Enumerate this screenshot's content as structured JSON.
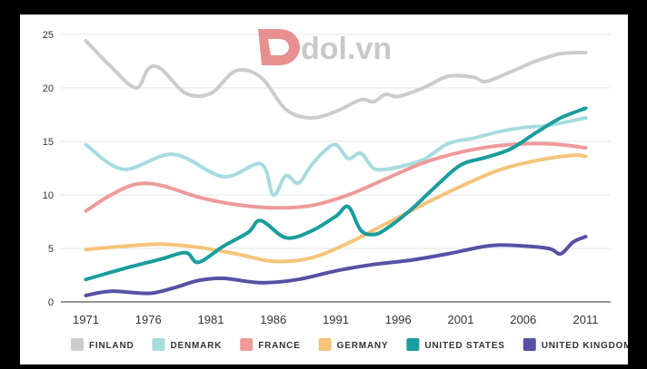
{
  "watermark": {
    "text": "dol.vn",
    "logo_color": "#e88f8f"
  },
  "chart_data": {
    "type": "line",
    "title": "",
    "xlabel": "",
    "ylabel": "",
    "ylim": [
      0,
      25
    ],
    "yticks": [
      "0",
      "5",
      "10",
      "15",
      "20",
      "25"
    ],
    "xticks": [
      "1971",
      "1976",
      "1981",
      "1986",
      "1991",
      "1996",
      "2001",
      "2006",
      "2011"
    ],
    "grid": "horizontal",
    "legend_position": "bottom",
    "series": [
      {
        "name": "FINLAND",
        "color": "#cccccc",
        "points": [
          [
            1971,
            24.4
          ],
          [
            1973,
            22.0
          ],
          [
            1975,
            20.0
          ],
          [
            1976,
            21.8
          ],
          [
            1977,
            21.8
          ],
          [
            1979,
            19.5
          ],
          [
            1981,
            19.5
          ],
          [
            1983,
            21.6
          ],
          [
            1985,
            21.0
          ],
          [
            1987,
            18.0
          ],
          [
            1989,
            17.2
          ],
          [
            1991,
            17.8
          ],
          [
            1993,
            18.9
          ],
          [
            1994,
            18.7
          ],
          [
            1995,
            19.4
          ],
          [
            1996,
            19.2
          ],
          [
            1998,
            20.0
          ],
          [
            2000,
            21.1
          ],
          [
            2002,
            21.0
          ],
          [
            2003,
            20.6
          ],
          [
            2005,
            21.5
          ],
          [
            2007,
            22.5
          ],
          [
            2009,
            23.2
          ],
          [
            2011,
            23.3
          ]
        ]
      },
      {
        "name": "DENMARK",
        "color": "#a7dcdf",
        "points": [
          [
            1971,
            14.7
          ],
          [
            1974,
            12.4
          ],
          [
            1978,
            13.8
          ],
          [
            1982,
            11.7
          ],
          [
            1985,
            12.9
          ],
          [
            1986,
            10.0
          ],
          [
            1987,
            11.8
          ],
          [
            1988,
            11.1
          ],
          [
            1989,
            12.7
          ],
          [
            1990,
            14.0
          ],
          [
            1991,
            14.7
          ],
          [
            1992,
            13.4
          ],
          [
            1993,
            13.9
          ],
          [
            1994,
            12.5
          ],
          [
            1995,
            12.4
          ],
          [
            1996,
            12.6
          ],
          [
            1998,
            13.3
          ],
          [
            2000,
            14.8
          ],
          [
            2002,
            15.3
          ],
          [
            2004,
            15.9
          ],
          [
            2006,
            16.3
          ],
          [
            2008,
            16.5
          ],
          [
            2011,
            17.2
          ]
        ]
      },
      {
        "name": "FRANCE",
        "color": "#ee9a9a",
        "points": [
          [
            1971,
            8.5
          ],
          [
            1973,
            10.0
          ],
          [
            1975,
            11.0
          ],
          [
            1977,
            10.9
          ],
          [
            1980,
            9.8
          ],
          [
            1983,
            9.1
          ],
          [
            1986,
            8.8
          ],
          [
            1989,
            9.0
          ],
          [
            1992,
            10.0
          ],
          [
            1995,
            11.5
          ],
          [
            1998,
            13.0
          ],
          [
            2001,
            14.0
          ],
          [
            2004,
            14.6
          ],
          [
            2007,
            14.8
          ],
          [
            2009,
            14.7
          ],
          [
            2011,
            14.4
          ]
        ]
      },
      {
        "name": "GERMANY",
        "color": "#f5c47a",
        "points": [
          [
            1971,
            4.9
          ],
          [
            1974,
            5.2
          ],
          [
            1977,
            5.4
          ],
          [
            1980,
            5.1
          ],
          [
            1983,
            4.5
          ],
          [
            1986,
            3.8
          ],
          [
            1989,
            4.1
          ],
          [
            1992,
            5.5
          ],
          [
            1995,
            7.3
          ],
          [
            1998,
            9.1
          ],
          [
            2001,
            10.8
          ],
          [
            2004,
            12.3
          ],
          [
            2007,
            13.2
          ],
          [
            2010,
            13.7
          ],
          [
            2011,
            13.6
          ]
        ]
      },
      {
        "name": "UNITED STATES",
        "color": "#1a9d9d",
        "points": [
          [
            1971,
            2.1
          ],
          [
            1974,
            3.1
          ],
          [
            1977,
            4.0
          ],
          [
            1979,
            4.6
          ],
          [
            1980,
            3.7
          ],
          [
            1982,
            5.2
          ],
          [
            1984,
            6.5
          ],
          [
            1985,
            7.6
          ],
          [
            1987,
            6.0
          ],
          [
            1989,
            6.6
          ],
          [
            1991,
            8.0
          ],
          [
            1992,
            8.9
          ],
          [
            1993,
            6.7
          ],
          [
            1994,
            6.3
          ],
          [
            1995,
            6.8
          ],
          [
            1997,
            8.6
          ],
          [
            1999,
            10.8
          ],
          [
            2001,
            12.8
          ],
          [
            2003,
            13.5
          ],
          [
            2005,
            14.3
          ],
          [
            2007,
            15.8
          ],
          [
            2009,
            17.2
          ],
          [
            2011,
            18.1
          ]
        ]
      },
      {
        "name": "UNITED KINGDOM",
        "color": "#5651a4",
        "points": [
          [
            1971,
            0.6
          ],
          [
            1973,
            1.0
          ],
          [
            1976,
            0.8
          ],
          [
            1978,
            1.3
          ],
          [
            1980,
            2.0
          ],
          [
            1982,
            2.2
          ],
          [
            1985,
            1.8
          ],
          [
            1988,
            2.1
          ],
          [
            1991,
            2.9
          ],
          [
            1994,
            3.5
          ],
          [
            1997,
            3.9
          ],
          [
            2000,
            4.5
          ],
          [
            2003,
            5.2
          ],
          [
            2005,
            5.3
          ],
          [
            2008,
            5.0
          ],
          [
            2009,
            4.5
          ],
          [
            2010,
            5.6
          ],
          [
            2011,
            6.1
          ]
        ]
      }
    ]
  }
}
